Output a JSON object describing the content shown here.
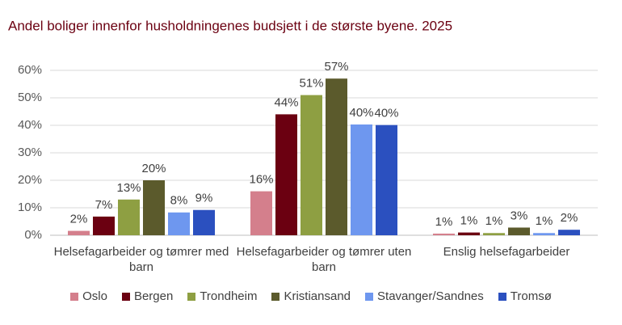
{
  "chart_data": {
    "type": "bar",
    "title": "Andel boliger innenfor husholdningenes budsjett i de største byene. 2025",
    "categories": [
      "Helsefagarbeider og tømrer med barn",
      "Helsefagarbeider og tømrer uten barn",
      "Enslig helsefagarbeider"
    ],
    "series": [
      {
        "name": "Oslo",
        "color": "#d47f8c",
        "values": [
          1.6,
          16,
          0.6
        ],
        "value_labels": [
          "2%",
          "16%",
          "1%"
        ]
      },
      {
        "name": "Bergen",
        "color": "#6b0011",
        "values": [
          6.8,
          44,
          1.0
        ],
        "value_labels": [
          "7%",
          "44%",
          "1%"
        ]
      },
      {
        "name": "Trondheim",
        "color": "#8e9f42",
        "values": [
          13,
          51,
          0.8
        ],
        "value_labels": [
          "13%",
          "51%",
          "1%"
        ]
      },
      {
        "name": "Kristiansand",
        "color": "#5b5a2c",
        "values": [
          20,
          57,
          2.8
        ],
        "value_labels": [
          "20%",
          "57%",
          "3%"
        ]
      },
      {
        "name": "Stavanger/Sandnes",
        "color": "#6e97ef",
        "values": [
          8.3,
          40.3,
          0.8
        ],
        "value_labels": [
          "8%",
          "40%",
          "1%"
        ]
      },
      {
        "name": "Tromsø",
        "color": "#2b50bf",
        "values": [
          9.2,
          40.1,
          2.0
        ],
        "value_labels": [
          "9%",
          "40%",
          "2%"
        ]
      }
    ],
    "ylim": [
      0,
      60
    ],
    "yticks": [
      {
        "value": 0,
        "label": "0%"
      },
      {
        "value": 10,
        "label": "10%"
      },
      {
        "value": 20,
        "label": "20%"
      },
      {
        "value": 30,
        "label": "30%"
      },
      {
        "value": 40,
        "label": "40%"
      },
      {
        "value": 50,
        "label": "50%"
      },
      {
        "value": 60,
        "label": "60%"
      }
    ],
    "grid": true
  }
}
